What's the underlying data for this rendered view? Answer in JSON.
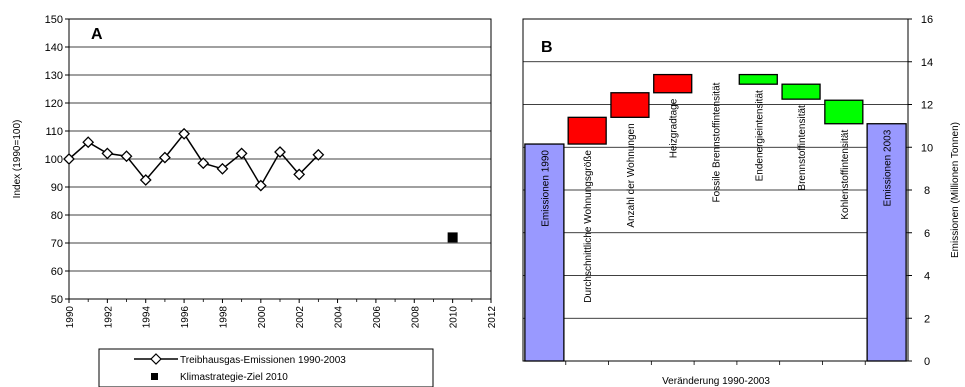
{
  "chart_data": [
    {
      "type": "line",
      "panel_label": "A",
      "ylabel": "Index (1990=100)",
      "xlabel": "",
      "xlim": [
        1990,
        2012
      ],
      "ylim": [
        50,
        150
      ],
      "x_ticks": [
        "1990",
        "1992",
        "1994",
        "1996",
        "1998",
        "2000",
        "2002",
        "2004",
        "2006",
        "2008",
        "2010",
        "2012"
      ],
      "y_ticks": [
        "50",
        "60",
        "70",
        "80",
        "90",
        "100",
        "110",
        "120",
        "130",
        "140",
        "150"
      ],
      "grid": "horizontal",
      "legend": "bottom",
      "series": [
        {
          "name": "Treibhausgas-Emissionen 1990-2003",
          "marker": "diamond-open",
          "color": "#000000",
          "x": [
            1990,
            1991,
            1992,
            1993,
            1994,
            1995,
            1996,
            1997,
            1998,
            1999,
            2000,
            2001,
            2002,
            2003
          ],
          "values": [
            100,
            106,
            102,
            101,
            92.5,
            100.5,
            109,
            98.5,
            96.5,
            102,
            90.5,
            102.5,
            94.5,
            101.5
          ]
        },
        {
          "name": "Klimastrategie-Ziel 2010",
          "marker": "square-filled",
          "color": "#000000",
          "x": [
            2010
          ],
          "values": [
            72
          ]
        }
      ]
    },
    {
      "type": "bar",
      "subtype": "waterfall",
      "panel_label": "B",
      "xlabel": "Veränderung 1990-2003",
      "ylabel": "Emissionen (Millionen Tonnen)",
      "y_axis_side": "right",
      "ylim": [
        0,
        16
      ],
      "y_ticks": [
        "0",
        "2",
        "4",
        "6",
        "8",
        "10",
        "12",
        "14",
        "16"
      ],
      "grid": "horizontal",
      "categories": [
        "Emissionen 1990",
        "Durchschnittliche Wohnungsgröße",
        "Anzahl der Wohnungen",
        "Heizgradtage",
        "Fossile Brennstoffintensität",
        "Endenergieintensität",
        "Brennstoffintensität",
        "Kohlenstoffintensität",
        "Emissionen 2003"
      ],
      "bars": [
        {
          "bottom": 0,
          "top": 10.15,
          "kind": "total",
          "color": "#9999ff"
        },
        {
          "bottom": 10.15,
          "top": 11.4,
          "kind": "increase",
          "color": "#ff0000"
        },
        {
          "bottom": 11.4,
          "top": 12.55,
          "kind": "increase",
          "color": "#ff0000"
        },
        {
          "bottom": 12.55,
          "top": 13.4,
          "kind": "increase",
          "color": "#ff0000"
        },
        {
          "bottom": 13.4,
          "top": 13.4,
          "kind": "none",
          "color": ""
        },
        {
          "bottom": 12.95,
          "top": 13.4,
          "kind": "decrease",
          "color": "#00ff00"
        },
        {
          "bottom": 12.25,
          "top": 12.95,
          "kind": "decrease",
          "color": "#00ff00"
        },
        {
          "bottom": 11.1,
          "top": 12.2,
          "kind": "decrease",
          "color": "#00ff00"
        },
        {
          "bottom": 0,
          "top": 11.1,
          "kind": "total",
          "color": "#9999ff"
        }
      ]
    }
  ]
}
